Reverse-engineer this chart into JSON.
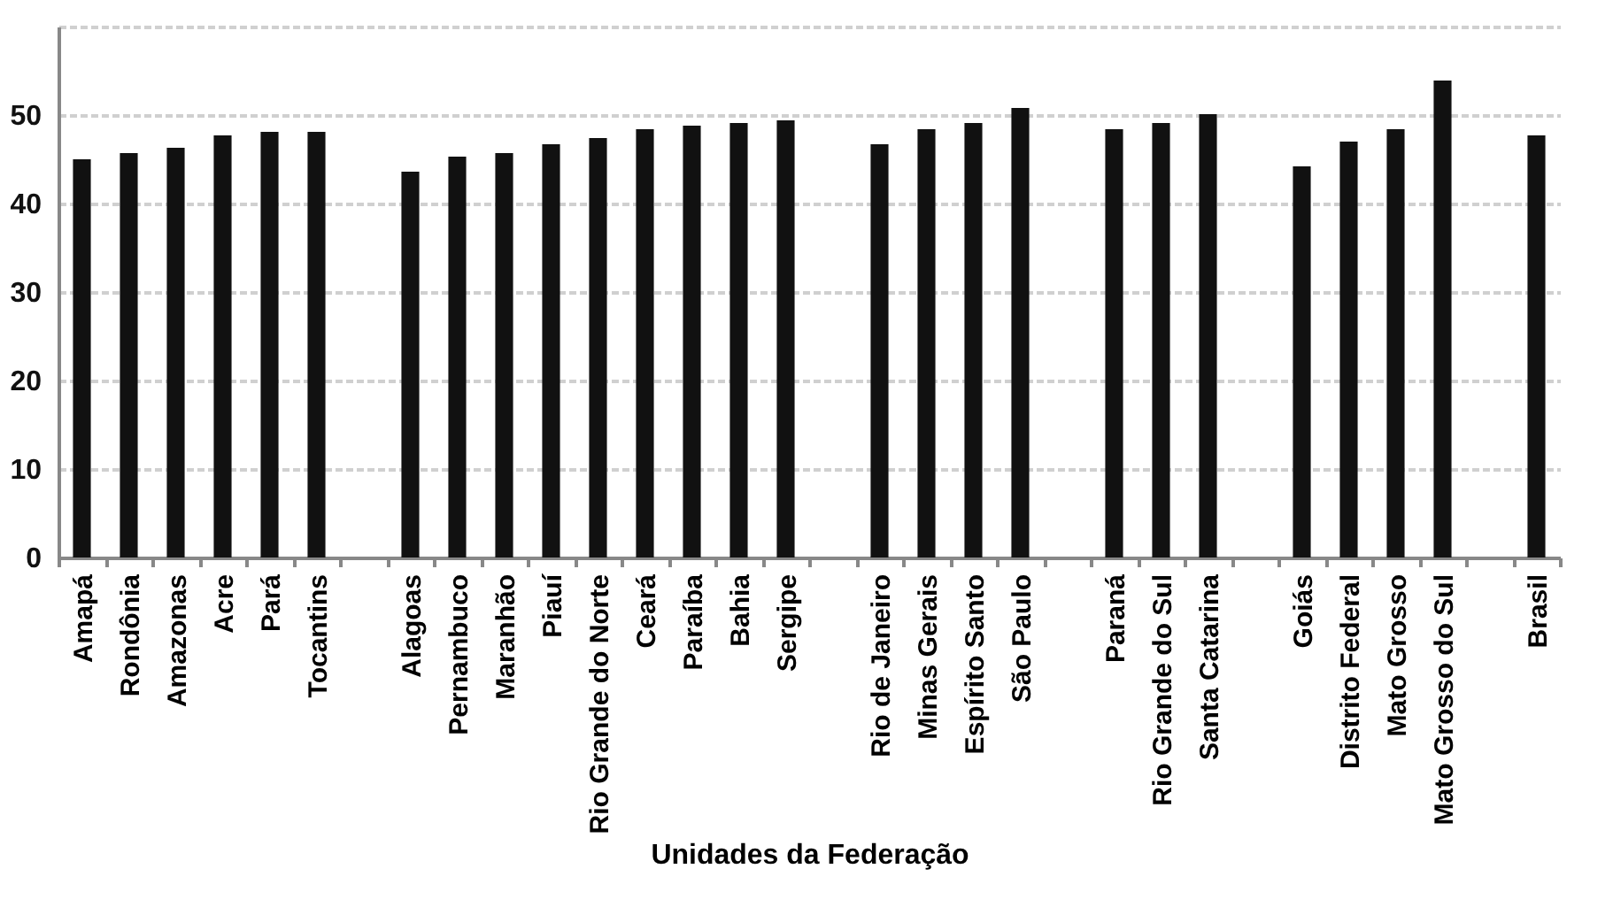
{
  "chart_data": {
    "type": "bar",
    "xlabel": "Unidades da Federação",
    "categories": [
      "Amapá",
      "Rondônia",
      "Amazonas",
      "Acre",
      "Pará",
      "Tocantins",
      null,
      "Alagoas",
      "Pernambuco",
      "Maranhão",
      "Piauí",
      "Rio Grande do Norte",
      "Ceará",
      "Paraíba",
      "Bahia",
      "Sergipe",
      null,
      "Rio de Janeiro",
      "Minas Gerais",
      "Espírito Santo",
      "São Paulo",
      null,
      "Paraná",
      "Rio Grande do Sul",
      "Santa Catarina",
      null,
      "Goiás",
      "Distrito Federal",
      "Mato Grosso",
      "Mato Grosso do Sul",
      null,
      "Brasil"
    ],
    "values": [
      45.0,
      45.7,
      46.3,
      47.7,
      48.1,
      48.1,
      null,
      43.6,
      45.3,
      45.7,
      46.7,
      47.4,
      48.4,
      48.8,
      49.1,
      49.4,
      null,
      46.7,
      48.4,
      49.1,
      50.8,
      null,
      48.4,
      49.1,
      50.1,
      null,
      44.2,
      47.0,
      48.4,
      53.9,
      null,
      47.7
    ],
    "color": "#111111",
    "ylim": [
      0,
      60
    ],
    "yticks": [
      0,
      10,
      20,
      30,
      40,
      50,
      {
        "value": 60,
        "label": null
      }
    ],
    "grid": "y"
  }
}
